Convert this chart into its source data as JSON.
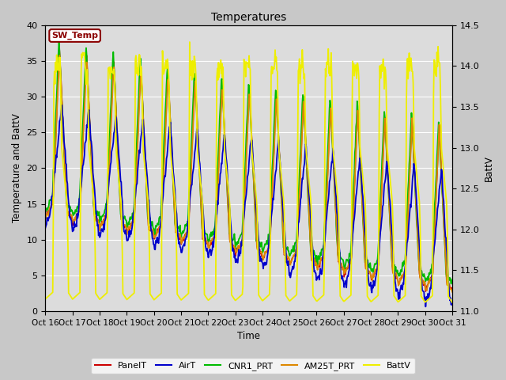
{
  "title": "Temperatures",
  "xlabel": "Time",
  "ylabel_left": "Temperature and BattV",
  "ylabel_right": "BattV",
  "xlim": [
    0,
    15
  ],
  "ylim_left": [
    0,
    40
  ],
  "ylim_right": [
    11.0,
    14.5
  ],
  "xtick_labels": [
    "Oct 16",
    "Oct 17",
    "Oct 18",
    "Oct 19",
    "Oct 20",
    "Oct 21",
    "Oct 22",
    "Oct 23",
    "Oct 24",
    "Oct 25",
    "Oct 26",
    "Oct 27",
    "Oct 28",
    "Oct 29",
    "Oct 30",
    "Oct 31"
  ],
  "yticks_left": [
    0,
    5,
    10,
    15,
    20,
    25,
    30,
    35,
    40
  ],
  "yticks_right": [
    11.0,
    11.5,
    12.0,
    12.5,
    13.0,
    13.5,
    14.0,
    14.5
  ],
  "annotation_text": "SW_Temp",
  "annotation_color": "#8B0000",
  "legend_entries": [
    "PanelT",
    "AirT",
    "CNR1_PRT",
    "AM25T_PRT",
    "BattV"
  ],
  "legend_colors": [
    "#cc0000",
    "#0000cc",
    "#00cc00",
    "#cc8800",
    "#cccc00"
  ],
  "figsize": [
    6.4,
    4.8
  ],
  "dpi": 100
}
